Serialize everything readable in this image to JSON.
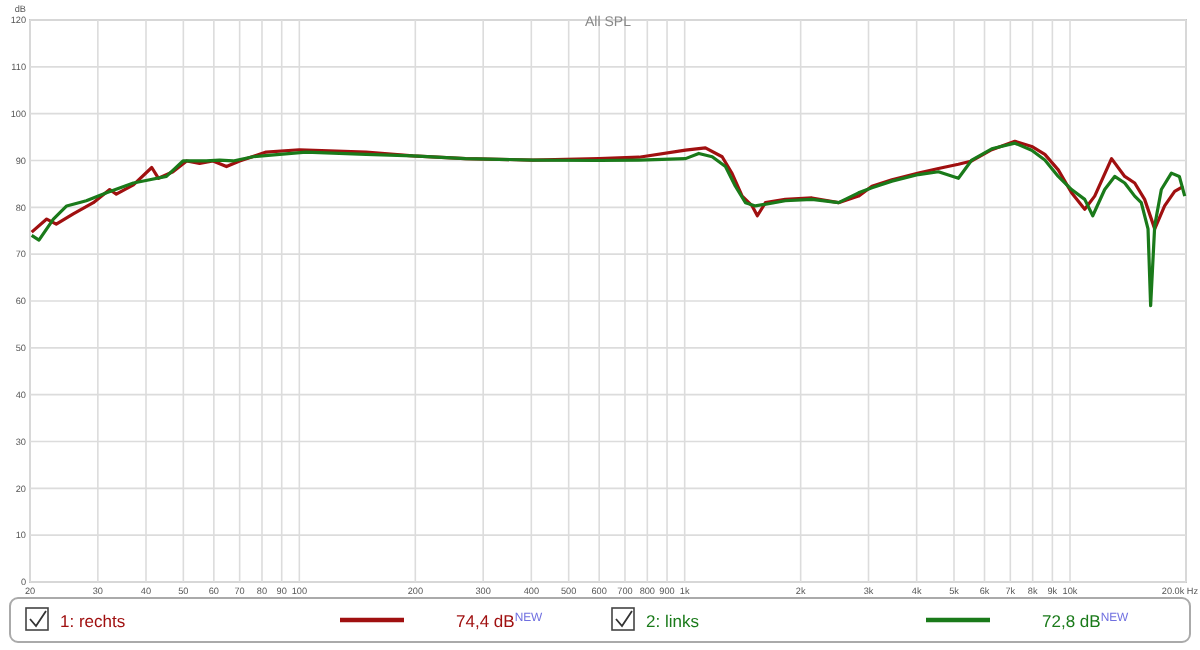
{
  "chart_data": {
    "type": "line",
    "title": "All SPL",
    "ylabel": "dB",
    "log": "x",
    "grid": true,
    "legend": "bottom",
    "marker": "none",
    "line_style": "solid",
    "xlim": [
      20,
      20000
    ],
    "ylim": [
      0,
      120
    ],
    "xticks": [
      20,
      30,
      40,
      50,
      60,
      70,
      80,
      90,
      100,
      200,
      300,
      400,
      500,
      600,
      700,
      800,
      900,
      {
        "value": 1000,
        "label": "1k"
      },
      {
        "value": 2000,
        "label": "2k"
      },
      {
        "value": 3000,
        "label": "3k"
      },
      {
        "value": 4000,
        "label": "4k"
      },
      {
        "value": 5000,
        "label": "5k"
      },
      {
        "value": 6000,
        "label": "6k"
      },
      {
        "value": 7000,
        "label": "7k"
      },
      {
        "value": 8000,
        "label": "8k"
      },
      {
        "value": 9000,
        "label": "9k"
      },
      {
        "value": 10000,
        "label": "10k"
      },
      {
        "value": 20000,
        "label": "20.0k Hz"
      }
    ],
    "yticks": [
      0,
      10,
      20,
      30,
      40,
      50,
      60,
      70,
      80,
      90,
      100,
      110,
      120
    ],
    "series": [
      {
        "name": "1: rechts",
        "color": "#a01010",
        "x": [
          20.2,
          22.1,
          23.4,
          25.9,
          29.2,
          32.2,
          33.5,
          37.1,
          41.4,
          43.1,
          47,
          51,
          55.1,
          59.7,
          64.7,
          70,
          82,
          100,
          149,
          197,
          270,
          403,
          599,
          761,
          1005,
          1132,
          1251,
          1328,
          1410,
          1497,
          1544,
          1620,
          1824,
          2140,
          2508,
          2826,
          3062,
          3450,
          4044,
          4556,
          5133,
          5560,
          6265,
          7194,
          7954,
          8604,
          9322,
          10094,
          10920,
          11590,
          12818,
          13868,
          14720,
          15620,
          16590,
          17600,
          18690,
          19690
        ],
        "values": [
          74.7,
          77.5,
          76.4,
          78.6,
          81,
          83.8,
          82.8,
          84.8,
          88.5,
          86.2,
          87.6,
          89.9,
          89.4,
          89.9,
          88.7,
          89.9,
          91.8,
          92.3,
          91.8,
          91,
          90.4,
          90.1,
          90.4,
          90.7,
          92.2,
          92.7,
          90.8,
          87.2,
          82.4,
          80.3,
          78.2,
          81,
          81.7,
          82,
          81,
          82.4,
          84.5,
          85.9,
          87.3,
          88.3,
          89.2,
          89.9,
          92.3,
          94.1,
          93,
          91.3,
          88,
          83.1,
          79.6,
          82.4,
          90.4,
          86.6,
          85.2,
          81.7,
          75.4,
          80.3,
          83.4,
          84.5
        ]
      },
      {
        "name": "2: links",
        "color": "#1a7a1a",
        "x": [
          20.2,
          21.1,
          23,
          24.9,
          28,
          31.6,
          37.1,
          40.9,
          45.2,
          49.9,
          53,
          57.3,
          62.1,
          67.3,
          75.8,
          88.9,
          104,
          149,
          197,
          270,
          403,
          599,
          761,
          1005,
          1088,
          1179,
          1276,
          1354,
          1438,
          1526,
          1824,
          2140,
          2508,
          2826,
          3062,
          3450,
          4044,
          4556,
          5133,
          5560,
          6265,
          7194,
          7954,
          8604,
          9322,
          10094,
          10920,
          11456,
          12304,
          13060,
          13868,
          14720,
          15310,
          15940,
          16190,
          16590,
          17260,
          18330,
          19220,
          19850
        ],
        "values": [
          74,
          73,
          77.5,
          80.3,
          81.4,
          83.1,
          85.2,
          85.9,
          86.6,
          89.9,
          89.9,
          89.9,
          90.1,
          89.9,
          90.8,
          91.3,
          91.8,
          91.3,
          91,
          90.4,
          90.1,
          90,
          90.1,
          90.4,
          91.5,
          90.8,
          88.7,
          84.5,
          81,
          80.3,
          81.4,
          81.7,
          81,
          83.1,
          84.2,
          85.6,
          87,
          87.6,
          86.2,
          90.1,
          92.5,
          93.7,
          92.2,
          90.1,
          86.6,
          83.8,
          81.7,
          78.2,
          83.8,
          86.6,
          85.2,
          82.4,
          81,
          75.4,
          59,
          76.1,
          83.8,
          87.3,
          86.6,
          82.4
        ]
      }
    ],
    "annotations": [
      "74,4 dB$^{NEW}$",
      "72,8 dB$^{NEW}$"
    ]
  }
}
